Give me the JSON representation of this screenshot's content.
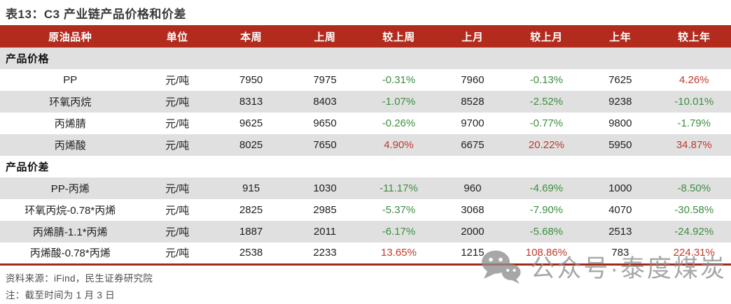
{
  "title": "表13：C3 产业链产品价格和价差",
  "table": {
    "columns": [
      "原油品种",
      "单位",
      "本周",
      "上周",
      "较上周",
      "上月",
      "较上月",
      "上年",
      "较上年"
    ],
    "rows": [
      {
        "type": "section",
        "label": "产品价格"
      },
      {
        "type": "data",
        "cells": [
          "PP",
          "元/吨",
          "7950",
          "7975",
          "-0.31%",
          "7960",
          "-0.13%",
          "7625",
          "4.26%"
        ]
      },
      {
        "type": "data",
        "cells": [
          "环氧丙烷",
          "元/吨",
          "8313",
          "8403",
          "-1.07%",
          "8528",
          "-2.52%",
          "9238",
          "-10.01%"
        ]
      },
      {
        "type": "data",
        "cells": [
          "丙烯腈",
          "元/吨",
          "9625",
          "9650",
          "-0.26%",
          "9700",
          "-0.77%",
          "9800",
          "-1.79%"
        ]
      },
      {
        "type": "data",
        "cells": [
          "丙烯酸",
          "元/吨",
          "8025",
          "7650",
          "4.90%",
          "6675",
          "20.22%",
          "5950",
          "34.87%"
        ]
      },
      {
        "type": "section",
        "label": "产品价差"
      },
      {
        "type": "data",
        "cells": [
          "PP-丙烯",
          "元/吨",
          "915",
          "1030",
          "-11.17%",
          "960",
          "-4.69%",
          "1000",
          "-8.50%"
        ]
      },
      {
        "type": "data",
        "cells": [
          "环氧丙烷-0.78*丙烯",
          "元/吨",
          "2825",
          "2985",
          "-5.37%",
          "3068",
          "-7.90%",
          "4070",
          "-30.58%"
        ]
      },
      {
        "type": "data",
        "cells": [
          "丙烯腈-1.1*丙烯",
          "元/吨",
          "1887",
          "2011",
          "-6.17%",
          "2000",
          "-5.68%",
          "2513",
          "-24.92%"
        ]
      },
      {
        "type": "data",
        "cells": [
          "丙烯酸-0.78*丙烯",
          "元/吨",
          "2538",
          "2233",
          "13.65%",
          "1215",
          "108.86%",
          "783",
          "224.31%"
        ]
      }
    ]
  },
  "footer": {
    "source": "资料来源：iFind，民生证券研究院",
    "note": "注：截至时间为 1 月 3 日"
  },
  "watermark": {
    "icon": "wechat-icon",
    "text": "公众号·泰度煤炭"
  },
  "colors": {
    "header_bg": "#B22B1C",
    "stripe_bg": "#E0E0E0",
    "positive": "#C0392B",
    "negative": "#3E8E41",
    "bottom_rule": "#A3271A",
    "watermark": "#8F8F8F"
  }
}
